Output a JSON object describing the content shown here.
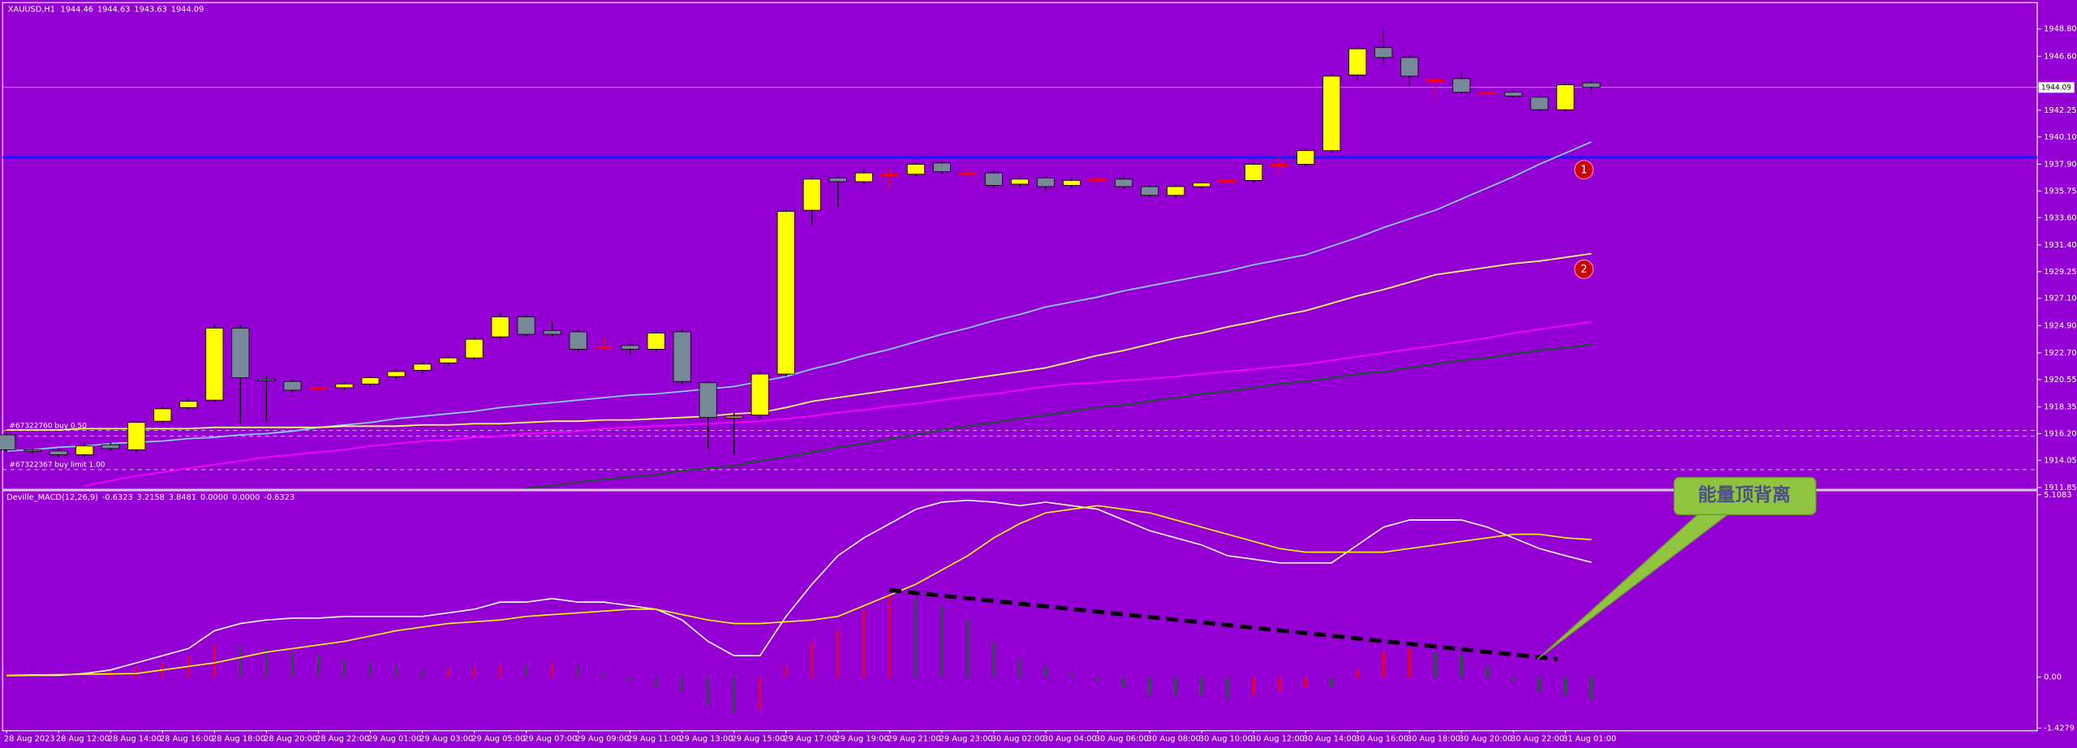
{
  "chart_data": [
    {
      "type": "candlestick",
      "title": "XAUUSD,H1",
      "categories": [
        "28 Aug 2023",
        null,
        "28 Aug 12:00",
        null,
        "28 Aug 14:00",
        null,
        "28 Aug 16:00",
        null,
        "28 Aug 18:00",
        null,
        "28 Aug 20:00",
        null,
        "28 Aug 22:00",
        null,
        "29 Aug 01:00",
        null,
        "29 Aug 03:00",
        null,
        "29 Aug 05:00",
        null,
        "29 Aug 07:00",
        null,
        "29 Aug 09:00",
        null,
        "29 Aug 11:00",
        null,
        "29 Aug 13:00",
        null,
        "29 Aug 15:00",
        null,
        "29 Aug 17:00",
        null,
        "29 Aug 19:00",
        null,
        "29 Aug 21:00",
        null,
        "29 Aug 23:00",
        null,
        "30 Aug 02:00",
        null,
        "30 Aug 04:00",
        null,
        "30 Aug 06:00",
        null,
        "30 Aug 08:00",
        null,
        "30 Aug 10:00",
        null,
        "30 Aug 12:00",
        null,
        "30 Aug 14:00",
        null,
        "30 Aug 16:00",
        null,
        "30 Aug 18:00",
        null,
        "30 Aug 20:00",
        null,
        "30 Aug 22:00",
        null,
        "31 Aug 01:00",
        null
      ],
      "open": [
        1916.1,
        1914.9,
        1914.8,
        1914.5,
        1915.3,
        1914.9,
        1917.2,
        1918.3,
        1918.9,
        1924.7,
        1920.6,
        1920.4,
        1919.9,
        1919.9,
        1920.2,
        1920.8,
        1921.3,
        1921.9,
        1922.3,
        1924.0,
        1925.6,
        1924.5,
        1924.4,
        1923.2,
        1923.3,
        1923.0,
        1924.4,
        1920.3,
        1917.5,
        1917.7,
        1921.0,
        1934.2,
        1936.8,
        1936.5,
        1937.1,
        1937.1,
        1938.0,
        1937.2,
        1937.2,
        1936.3,
        1936.8,
        1936.2,
        1936.7,
        1936.7,
        1936.1,
        1935.4,
        1936.1,
        1936.6,
        1936.6,
        1937.9,
        1937.9,
        1939.0,
        1945.1,
        1947.3,
        1946.5,
        1944.7,
        1944.8,
        1943.7,
        1943.7,
        1943.3,
        1942.3,
        1944.46
      ],
      "high": [
        1916.3,
        1915.0,
        1915.0,
        1915.4,
        1915.5,
        1917.2,
        1918.4,
        1919.0,
        1925.0,
        1925.0,
        1920.8,
        1920.6,
        1920.0,
        1920.4,
        1920.9,
        1921.4,
        1922.0,
        1922.5,
        1924.0,
        1925.9,
        1925.8,
        1925.2,
        1924.6,
        1923.9,
        1923.5,
        1924.5,
        1924.6,
        1920.5,
        1917.9,
        1921.2,
        1934.3,
        1936.9,
        1937.0,
        1937.5,
        1937.6,
        1938.1,
        1938.2,
        1937.5,
        1937.4,
        1936.9,
        1937.0,
        1936.8,
        1936.9,
        1937.0,
        1936.3,
        1936.3,
        1936.6,
        1936.8,
        1938.1,
        1938.6,
        1939.2,
        1945.2,
        1947.4,
        1948.8,
        1946.7,
        1944.9,
        1945.3,
        1943.9,
        1943.9,
        1943.5,
        1944.5,
        1944.63
      ],
      "low": [
        1914.7,
        1914.6,
        1914.3,
        1914.3,
        1914.8,
        1914.7,
        1917.0,
        1918.1,
        1918.7,
        1917.0,
        1917.2,
        1919.5,
        1919.7,
        1919.7,
        1920.0,
        1920.6,
        1921.1,
        1921.7,
        1922.1,
        1923.8,
        1924.0,
        1924.0,
        1922.8,
        1922.9,
        1922.6,
        1922.8,
        1920.2,
        1915.0,
        1914.5,
        1917.4,
        1920.8,
        1933.0,
        1934.5,
        1936.3,
        1936.0,
        1936.9,
        1937.1,
        1936.9,
        1936.0,
        1936.0,
        1935.6,
        1936.0,
        1936.4,
        1935.9,
        1935.2,
        1935.2,
        1935.9,
        1936.4,
        1936.4,
        1937.2,
        1937.7,
        1938.8,
        1944.6,
        1945.9,
        1944.2,
        1943.2,
        1943.5,
        1943.5,
        1943.2,
        1942.1,
        1942.1,
        1943.63
      ],
      "close": [
        1914.9,
        1914.8,
        1914.5,
        1915.2,
        1915.0,
        1917.1,
        1918.2,
        1918.8,
        1924.7,
        1920.7,
        1920.5,
        1919.7,
        1919.9,
        1920.2,
        1920.7,
        1921.2,
        1921.8,
        1922.3,
        1923.8,
        1925.6,
        1924.2,
        1924.2,
        1923.0,
        1923.2,
        1923.0,
        1924.3,
        1920.4,
        1917.5,
        1917.6,
        1921.0,
        1934.1,
        1936.7,
        1936.5,
        1937.2,
        1937.1,
        1937.9,
        1937.3,
        1937.2,
        1936.2,
        1936.7,
        1936.1,
        1936.6,
        1936.7,
        1936.1,
        1935.4,
        1936.1,
        1936.4,
        1936.6,
        1937.9,
        1937.9,
        1939.0,
        1945.0,
        1947.2,
        1946.5,
        1945.0,
        1944.7,
        1943.7,
        1943.7,
        1943.4,
        1942.3,
        1944.3,
        1944.09
      ],
      "up_color": "#ffff00",
      "down_color": "#778899",
      "doji_color": "#ff0000",
      "series": [
        {
          "color": "#87cefa",
          "values": [
            1914.8,
            1914.9,
            1915.1,
            1915.2,
            1915.4,
            1915.5,
            1915.6,
            1915.8,
            1915.9,
            1916.1,
            1916.2,
            1916.4,
            1916.7,
            1916.9,
            1917.1,
            1917.4,
            1917.6,
            1917.8,
            1918.0,
            1918.3,
            1918.5,
            1918.7,
            1918.9,
            1919.1,
            1919.3,
            1919.4,
            1919.6,
            1919.8,
            1920.0,
            1920.4,
            1920.8,
            1921.4,
            1921.9,
            1922.5,
            1923.0,
            1923.6,
            1924.2,
            1924.7,
            1925.3,
            1925.8,
            1926.4,
            1926.8,
            1927.2,
            1927.7,
            1928.1,
            1928.5,
            1928.9,
            1929.3,
            1929.8,
            1930.2,
            1930.6,
            1931.3,
            1932.0,
            1932.8,
            1933.5,
            1934.2,
            1935.1,
            1936.0,
            1936.9,
            1937.9,
            1938.8,
            1939.7
          ]
        },
        {
          "color": "#ffff66",
          "values": [
            1916.5,
            1916.5,
            1916.5,
            1916.6,
            1916.6,
            1916.6,
            1916.6,
            1916.6,
            1916.7,
            1916.7,
            1916.7,
            1916.7,
            1916.7,
            1916.8,
            1916.8,
            1916.8,
            1916.9,
            1916.9,
            1917.0,
            1917.0,
            1917.1,
            1917.2,
            1917.2,
            1917.3,
            1917.3,
            1917.4,
            1917.5,
            1917.6,
            1917.8,
            1917.9,
            1918.3,
            1918.8,
            1919.1,
            1919.4,
            1919.7,
            1920.0,
            1920.3,
            1920.6,
            1920.9,
            1921.2,
            1921.5,
            1922.0,
            1922.5,
            1922.9,
            1923.4,
            1923.9,
            1924.3,
            1924.8,
            1925.2,
            1925.7,
            1926.1,
            1926.7,
            1927.3,
            1927.8,
            1928.4,
            1929.0,
            1929.3,
            1929.6,
            1929.9,
            1930.1,
            1930.4,
            1930.7
          ]
        },
        {
          "color": "#ff00ff",
          "values": [
            null,
            null,
            null,
            1912.0,
            1912.4,
            1912.8,
            1913.1,
            1913.4,
            1913.7,
            1914.0,
            1914.3,
            1914.5,
            1914.7,
            1914.9,
            1915.2,
            1915.4,
            1915.6,
            1915.7,
            1915.9,
            1916.0,
            1916.2,
            1916.3,
            1916.4,
            1916.6,
            1916.7,
            1916.8,
            1916.9,
            1917.0,
            1917.1,
            1917.2,
            1917.4,
            1917.6,
            1917.9,
            1918.1,
            1918.4,
            1918.6,
            1918.9,
            1919.2,
            1919.4,
            1919.7,
            1920.0,
            1920.2,
            1920.3,
            1920.5,
            1920.6,
            1920.8,
            1921.0,
            1921.2,
            1921.4,
            1921.6,
            1921.8,
            1922.1,
            1922.4,
            1922.7,
            1923.0,
            1923.3,
            1923.6,
            1923.9,
            1924.3,
            1924.6,
            1924.9,
            1925.2
          ]
        },
        {
          "color": "#0b5d1e",
          "values": [
            null,
            null,
            null,
            null,
            null,
            null,
            null,
            null,
            null,
            null,
            null,
            null,
            null,
            null,
            null,
            null,
            null,
            null,
            null,
            null,
            1911.8,
            1912.0,
            1912.3,
            1912.5,
            1912.7,
            1912.9,
            1913.2,
            1913.4,
            1913.6,
            1914.0,
            1914.3,
            1914.7,
            1915.1,
            1915.4,
            1915.8,
            1916.1,
            1916.5,
            1916.8,
            1917.1,
            1917.4,
            1917.7,
            1918.0,
            1918.3,
            1918.5,
            1918.8,
            1919.1,
            1919.4,
            1919.6,
            1919.9,
            1920.2,
            1920.4,
            1920.7,
            1921.0,
            1921.2,
            1921.5,
            1921.8,
            1922.1,
            1922.3,
            1922.6,
            1922.9,
            1923.1,
            1923.4
          ]
        }
      ],
      "levels": [
        {
          "value": 1938.45,
          "color": "#1a1aff",
          "style": "solid"
        },
        {
          "value": 1916.45,
          "color": "#c8c8c8",
          "style": "dashed",
          "label": "#67322760 buy 0.50"
        },
        {
          "value": 1916.0,
          "color": "#c8c8c8",
          "style": "dashed"
        },
        {
          "value": 1913.3,
          "color": "#c8c8c8",
          "style": "dashed",
          "label": "#67322367 buy limit 1.00"
        }
      ],
      "annotations": [
        "1",
        "2"
      ],
      "ylim": [
        1911.6,
        1950.6
      ],
      "yticks": [
        {
          "value": 1948.8,
          "label": "1948.80"
        },
        {
          "value": 1946.6,
          "label": "1946.60"
        },
        1942.25,
        {
          "value": 1940.1,
          "label": "1940.10"
        },
        {
          "value": 1937.9,
          "label": "1937.90"
        },
        1935.75,
        {
          "value": 1933.6,
          "label": "1933.60"
        },
        {
          "value": 1931.4,
          "label": "1931.40"
        },
        1929.25,
        {
          "value": 1927.1,
          "label": "1927.10"
        },
        {
          "value": 1924.9,
          "label": "1924.90"
        },
        {
          "value": 1922.7,
          "label": "1922.70"
        },
        1920.55,
        1918.35,
        {
          "value": 1916.2,
          "label": "1916.20"
        },
        1914.05,
        1911.85
      ]
    },
    {
      "type": "macd",
      "title": "Deville_MACD(12,26,9)",
      "buffers": [
        {
          "value": 0,
          "label": "0.0000"
        },
        {
          "value": 0,
          "label": "0.0000"
        }
      ],
      "series": [
        {
          "color": "#ffffff",
          "values": [
            0.04,
            0.05,
            0.05,
            0.1,
            0.2,
            0.4,
            0.6,
            0.8,
            1.3,
            1.5,
            1.6,
            1.65,
            1.65,
            1.7,
            1.7,
            1.7,
            1.7,
            1.8,
            1.9,
            2.1,
            2.1,
            2.2,
            2.1,
            2.1,
            2.0,
            1.9,
            1.6,
            1.0,
            0.6,
            0.6,
            1.7,
            2.6,
            3.4,
            3.9,
            4.3,
            4.7,
            4.9,
            4.95,
            4.9,
            4.8,
            4.9,
            4.8,
            4.7,
            4.4,
            4.1,
            3.9,
            3.7,
            3.4,
            3.3,
            3.2,
            3.2,
            3.2,
            3.7,
            4.2,
            4.4,
            4.4,
            4.4,
            4.2,
            3.9,
            3.6,
            3.4,
            3.2158
          ]
        },
        {
          "color": "#ffff00",
          "values": [
            0.05,
            0.06,
            0.07,
            0.08,
            0.09,
            0.1,
            0.2,
            0.3,
            0.4,
            0.55,
            0.7,
            0.8,
            0.9,
            1.0,
            1.15,
            1.3,
            1.4,
            1.5,
            1.55,
            1.6,
            1.7,
            1.75,
            1.8,
            1.85,
            1.9,
            1.9,
            1.75,
            1.6,
            1.5,
            1.5,
            1.55,
            1.6,
            1.7,
            2.0,
            2.3,
            2.6,
            3.0,
            3.4,
            3.9,
            4.3,
            4.6,
            4.7,
            4.8,
            4.7,
            4.6,
            4.4,
            4.2,
            4.0,
            3.8,
            3.6,
            3.5,
            3.5,
            3.5,
            3.5,
            3.6,
            3.7,
            3.8,
            3.9,
            4.0,
            4.0,
            3.9,
            3.8481
          ]
        }
      ],
      "histogram": {
        "up_color": "#ff0000",
        "down_color": "#0b6b1e",
        "values": [
          0.1,
          0.1,
          0.1,
          0.1,
          0.2,
          0.3,
          0.4,
          0.6,
          0.9,
          0.85,
          0.8,
          0.7,
          0.6,
          0.5,
          0.4,
          0.3,
          0.2,
          0.25,
          0.3,
          0.35,
          0.3,
          0.4,
          0.3,
          0.1,
          -0.1,
          -0.3,
          -0.4,
          -0.8,
          -1.0,
          -0.9,
          0.3,
          1.0,
          1.3,
          1.9,
          2.3,
          2.2,
          2.0,
          1.6,
          1.0,
          0.5,
          0.3,
          0.1,
          -0.1,
          -0.3,
          -0.5,
          -0.5,
          -0.5,
          -0.6,
          -0.5,
          -0.4,
          -0.3,
          -0.3,
          0.2,
          0.7,
          0.8,
          0.7,
          0.6,
          0.3,
          -0.1,
          -0.4,
          -0.5,
          -0.6323
        ]
      },
      "annotation": "能量顶背离",
      "ylim": [
        -1.4279,
        5.1083
      ],
      "yticks": [
        5.1083,
        {
          "value": 0,
          "label": "0.00"
        },
        -1.4279
      ]
    }
  ]
}
